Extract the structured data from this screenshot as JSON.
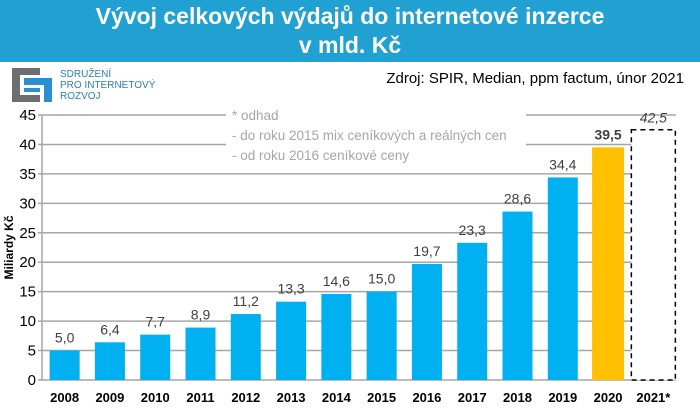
{
  "header": {
    "title_line1": "Vývoj celkových výdajů do internetové inzerce",
    "title_line2": "v mld. Kč"
  },
  "logo": {
    "line1": "SDRUŽENÍ",
    "line2": "PRO INTERNETOVÝ",
    "line3": "ROZVOJ"
  },
  "source": "Zdroj: SPIR, Median, ppm factum, únor 2021",
  "notes": [
    "* odhad",
    "- do roku 2015 mix ceníkových a reálných cen",
    "- od roku 2016 ceníkové ceny"
  ],
  "colors": {
    "bar": "#00b0f0",
    "highlight": "#ffc000",
    "band": "#21a0d2"
  },
  "chart_data": {
    "type": "bar",
    "title": "Vývoj celkových výdajů do internetové inzerce v mld. Kč",
    "ylabel": "Miliardy Kč",
    "xlabel": "",
    "ylim": [
      0,
      45
    ],
    "yticks": [
      0,
      5,
      10,
      15,
      20,
      25,
      30,
      35,
      40,
      45
    ],
    "grid": true,
    "categories": [
      "2008",
      "2009",
      "2010",
      "2011",
      "2012",
      "2013",
      "2014",
      "2015",
      "2016",
      "2017",
      "2018",
      "2019",
      "2020",
      "2021*"
    ],
    "values": [
      5.0,
      6.4,
      7.7,
      8.9,
      11.2,
      13.3,
      14.6,
      15.0,
      19.7,
      23.3,
      28.6,
      34.4,
      39.5,
      42.5
    ],
    "labels": [
      "5,0",
      "6,4",
      "7,7",
      "8,9",
      "11,2",
      "13,3",
      "14,6",
      "15,0",
      "19,7",
      "23,3",
      "28,6",
      "34,4",
      "39,5",
      "42,5"
    ],
    "highlight_category": "2020",
    "estimate_category": "2021*"
  }
}
